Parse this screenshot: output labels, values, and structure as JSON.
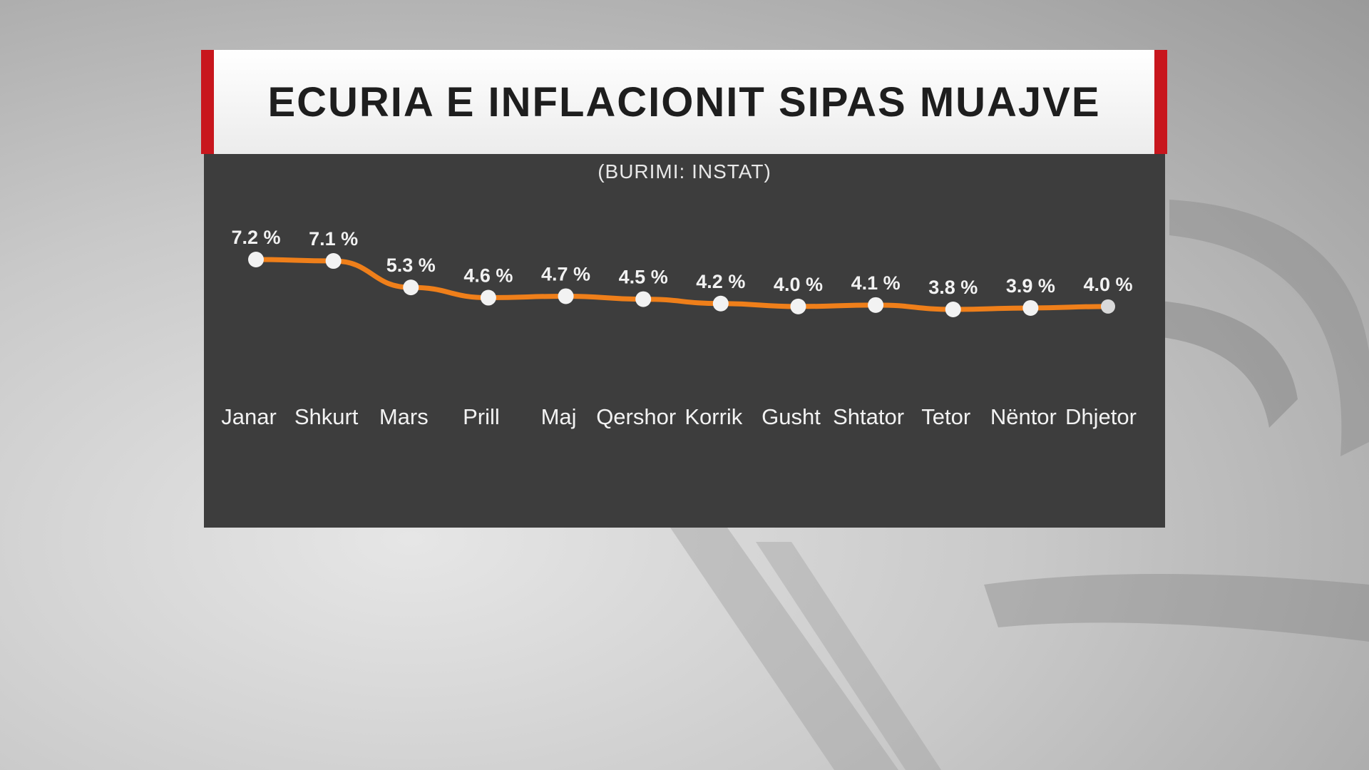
{
  "header": {
    "title": "ECURIA E INFLACIONIT SIPAS MUAJVE",
    "source": "(BURIMI: INSTAT)"
  },
  "colors": {
    "accent_red": "#c8161d",
    "line": "#ef7f1a",
    "panel": "#3d3d3d",
    "marker": "#f2f2f2",
    "text": "#f2f2f2"
  },
  "chart_data": {
    "type": "line",
    "categories": [
      "Janar",
      "Shkurt",
      "Mars",
      "Prill",
      "Maj",
      "Qershor",
      "Korrik",
      "Gusht",
      "Shtator",
      "Tetor",
      "Nëntor",
      "Dhjetor"
    ],
    "values": [
      7.2,
      7.1,
      5.3,
      4.6,
      4.7,
      4.5,
      4.2,
      4.0,
      4.1,
      3.8,
      3.9,
      4.0
    ],
    "value_labels": [
      "7.2 %",
      "7.1 %",
      "5.3 %",
      "4.6 %",
      "4.7 %",
      "4.5 %",
      "4.2 %",
      "4.0 %",
      "4.1 %",
      "3.8 %",
      "3.9 %",
      "4.0 %"
    ],
    "title": "ECURIA E INFLACIONIT SIPAS MUAJVE",
    "subtitle": "(BURIMI: INSTAT)",
    "xlabel": "",
    "ylabel": "",
    "grid": false,
    "legend": false
  }
}
